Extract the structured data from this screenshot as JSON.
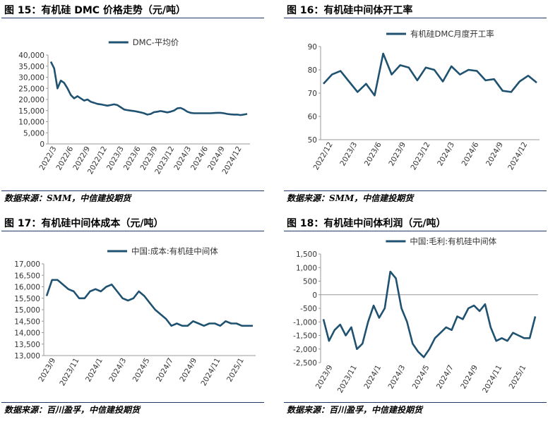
{
  "panels": [
    {
      "title": "图 15：有机硅 DMC 价格走势（元/吨）",
      "source": "数据来源：SMM，中信建投期货"
    },
    {
      "title": "图 16：有机硅中间体开工率",
      "source": "数据来源：SMM，中信建投期货"
    },
    {
      "title": "图 17：有机硅中间体成本（元/吨）",
      "source": "数据来源：百川盈孚，中信建投期货"
    },
    {
      "title": "图 18：有机硅中间体利润（元/吨）",
      "source": "数据来源：百川盈孚，中信建投期货"
    }
  ],
  "chart_data": [
    {
      "type": "line",
      "color": "#1f5170",
      "series": [
        {
          "name": "DMC-平均价",
          "values": [
            37000,
            34000,
            25000,
            28500,
            27500,
            25000,
            22000,
            20500,
            21500,
            20500,
            19500,
            20000,
            19000,
            18500,
            18000,
            17800,
            17500,
            17200,
            17500,
            17800,
            17500,
            16500,
            15500,
            15200,
            15000,
            14800,
            14500,
            14200,
            13800,
            13200,
            13500,
            14300,
            14500,
            14800,
            14500,
            14200,
            14500,
            15000,
            16000,
            16200,
            15500,
            14500,
            14000,
            13800,
            13800,
            13800,
            13800,
            13800,
            13800,
            13900,
            14000,
            14000,
            13800,
            13500,
            13300,
            13200,
            13200,
            13000,
            13200,
            13500
          ]
        }
      ],
      "x_ticks": [
        "2022/3",
        "2022/6",
        "2022/9",
        "2022/12",
        "2023/3",
        "2023/6",
        "2023/9",
        "2023/12",
        "2024/3",
        "2024/6",
        "2024/9",
        "2024/12"
      ],
      "ylim": [
        0,
        40000
      ],
      "y_ticks": [
        "0",
        "5,000",
        "10,000",
        "15,000",
        "20,000",
        "25,000",
        "30,000",
        "35,000",
        "40,000"
      ],
      "legend": "top"
    },
    {
      "type": "line",
      "color": "#1f5170",
      "series": [
        {
          "name": "有机硅DMC月度开工率",
          "values": [
            74,
            78,
            79.5,
            75,
            70.5,
            74,
            69,
            87,
            78,
            82,
            81,
            75.5,
            81,
            80,
            75,
            81.5,
            78,
            80,
            79.5,
            75.5,
            76,
            71,
            70.5,
            75,
            77.5,
            74.5
          ]
        }
      ],
      "x_ticks": [
        "2022/12",
        "2023/3",
        "2023/6",
        "2023/9",
        "2023/12",
        "2024/3",
        "2024/6",
        "2024/9",
        "2024/12"
      ],
      "ylim": [
        50,
        90
      ],
      "y_ticks": [
        "50",
        "60",
        "70",
        "80",
        "90"
      ],
      "legend": "top"
    },
    {
      "type": "line",
      "color": "#1f5170",
      "series": [
        {
          "name": "中国:成本:有机硅中间体",
          "values": [
            15600,
            16300,
            16300,
            16100,
            15900,
            15800,
            15500,
            15500,
            15800,
            15900,
            15800,
            16000,
            16100,
            15800,
            15500,
            15400,
            15500,
            15800,
            15600,
            15300,
            15000,
            14800,
            14600,
            14300,
            14400,
            14300,
            14300,
            14500,
            14400,
            14300,
            14400,
            14400,
            14300,
            14500,
            14400,
            14400,
            14300,
            14300,
            14300
          ]
        }
      ],
      "x_ticks": [
        "2023/9",
        "2023/11",
        "2024/1",
        "2024/3",
        "2024/5",
        "2024/7",
        "2024/9",
        "2024/11",
        "2025/1"
      ],
      "ylim": [
        13000,
        17000
      ],
      "y_ticks": [
        "13,000",
        "13,500",
        "14,000",
        "14,500",
        "15,000",
        "15,500",
        "16,000",
        "16,500",
        "17,000"
      ],
      "legend": "top"
    },
    {
      "type": "line",
      "color": "#1f5170",
      "series": [
        {
          "name": "中国:毛利:有机硅中间体",
          "values": [
            -900,
            -1700,
            -1300,
            -1100,
            -1500,
            -1200,
            -2000,
            -1800,
            -1000,
            -400,
            -850,
            -500,
            850,
            600,
            -500,
            -1000,
            -1800,
            -2100,
            -2300,
            -2000,
            -1600,
            -1400,
            -1200,
            -1300,
            -800,
            -900,
            -500,
            -400,
            -600,
            -350,
            -1200,
            -1700,
            -1600,
            -1700,
            -1400,
            -1500,
            -1600,
            -1600,
            -800
          ]
        }
      ],
      "x_ticks": [
        "2023/9",
        "2023/11",
        "2024/1",
        "2024/3",
        "2024/5",
        "2024/7",
        "2024/9",
        "2024/11",
        "2025/1"
      ],
      "ylim": [
        -2500,
        1500
      ],
      "y_ticks": [
        "-2,500",
        "-2,000",
        "-1,500",
        "-1,000",
        "-500",
        "0",
        "500",
        "1,000",
        "1,500"
      ],
      "legend": "top"
    }
  ]
}
